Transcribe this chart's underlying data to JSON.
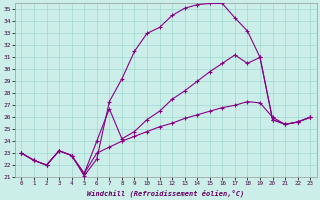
{
  "background_color": "#cceee8",
  "line_color": "#880088",
  "xlabel": "Windchill (Refroidissement éolien,°C)",
  "xlim": [
    -0.5,
    23.5
  ],
  "ylim": [
    21,
    35.5
  ],
  "yticks": [
    21,
    22,
    23,
    24,
    25,
    26,
    27,
    28,
    29,
    30,
    31,
    32,
    33,
    34,
    35
  ],
  "xticks": [
    0,
    1,
    2,
    3,
    4,
    5,
    6,
    7,
    8,
    9,
    10,
    11,
    12,
    13,
    14,
    15,
    16,
    17,
    18,
    19,
    20,
    21,
    22,
    23
  ],
  "series": [
    {
      "x": [
        0,
        1,
        2,
        3,
        4,
        5,
        6,
        7,
        8,
        9,
        10,
        11,
        12,
        13,
        14,
        15,
        16,
        17,
        18,
        19,
        20,
        21,
        22,
        23
      ],
      "y": [
        23.0,
        22.4,
        22.0,
        23.2,
        22.8,
        21.1,
        22.5,
        27.3,
        29.2,
        31.5,
        33.0,
        33.5,
        34.5,
        35.1,
        35.4,
        35.5,
        35.5,
        34.3,
        33.2,
        31.0,
        25.8,
        25.4,
        25.6,
        26.0
      ]
    },
    {
      "x": [
        0,
        1,
        2,
        3,
        4,
        5,
        6,
        7,
        8,
        9,
        10,
        11,
        12,
        13,
        14,
        15,
        16,
        17,
        18,
        19,
        20,
        21,
        22,
        23
      ],
      "y": [
        23.0,
        22.4,
        22.0,
        23.2,
        22.8,
        21.3,
        24.0,
        26.7,
        24.2,
        24.8,
        25.8,
        26.5,
        27.5,
        28.2,
        29.0,
        29.8,
        30.5,
        31.2,
        30.5,
        31.0,
        25.8,
        25.4,
        25.6,
        26.0
      ]
    },
    {
      "x": [
        0,
        1,
        2,
        3,
        4,
        5,
        6,
        7,
        8,
        9,
        10,
        11,
        12,
        13,
        14,
        15,
        16,
        17,
        18,
        19,
        20,
        21,
        22,
        23
      ],
      "y": [
        23.0,
        22.4,
        22.0,
        23.2,
        22.8,
        21.3,
        23.0,
        23.5,
        24.0,
        24.4,
        24.8,
        25.2,
        25.5,
        25.9,
        26.2,
        26.5,
        26.8,
        27.0,
        27.3,
        27.2,
        26.0,
        25.4,
        25.6,
        26.0
      ]
    }
  ]
}
